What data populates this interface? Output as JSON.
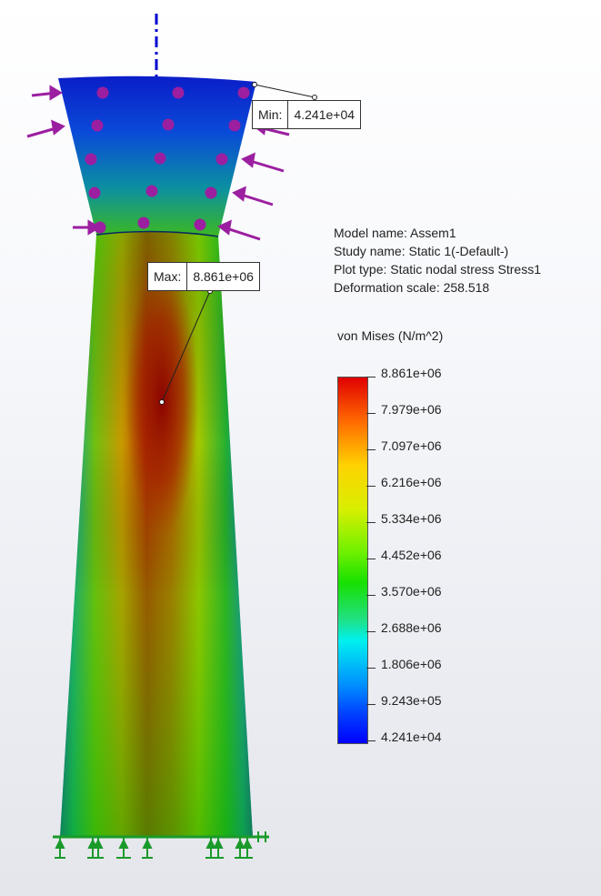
{
  "study_info": {
    "model_name": "Model name: Assem1",
    "study_name": "Study name: Static 1(-Default-)",
    "plot_type": "Plot type: Static nodal stress Stress1",
    "deformation_scale": "Deformation scale: 258.518"
  },
  "legend": {
    "title": "von Mises (N/m^2)",
    "ticks": [
      "8.861e+06",
      "7.979e+06",
      "7.097e+06",
      "6.216e+06",
      "5.334e+06",
      "4.452e+06",
      "3.570e+06",
      "2.688e+06",
      "1.806e+06",
      "9.243e+05",
      "4.241e+04"
    ]
  },
  "probes": {
    "min": {
      "label": "Min:",
      "value": "4.241e+04"
    },
    "max": {
      "label": "Max:",
      "value": "8.861e+06"
    }
  },
  "colors": {
    "load_arrow": "#9b1fa0",
    "fixture": "#1a9a2a",
    "axis": "#0000d0"
  },
  "icons": [
    "force-arrow-icon",
    "fixed-geometry-icon",
    "axis-line-icon"
  ]
}
